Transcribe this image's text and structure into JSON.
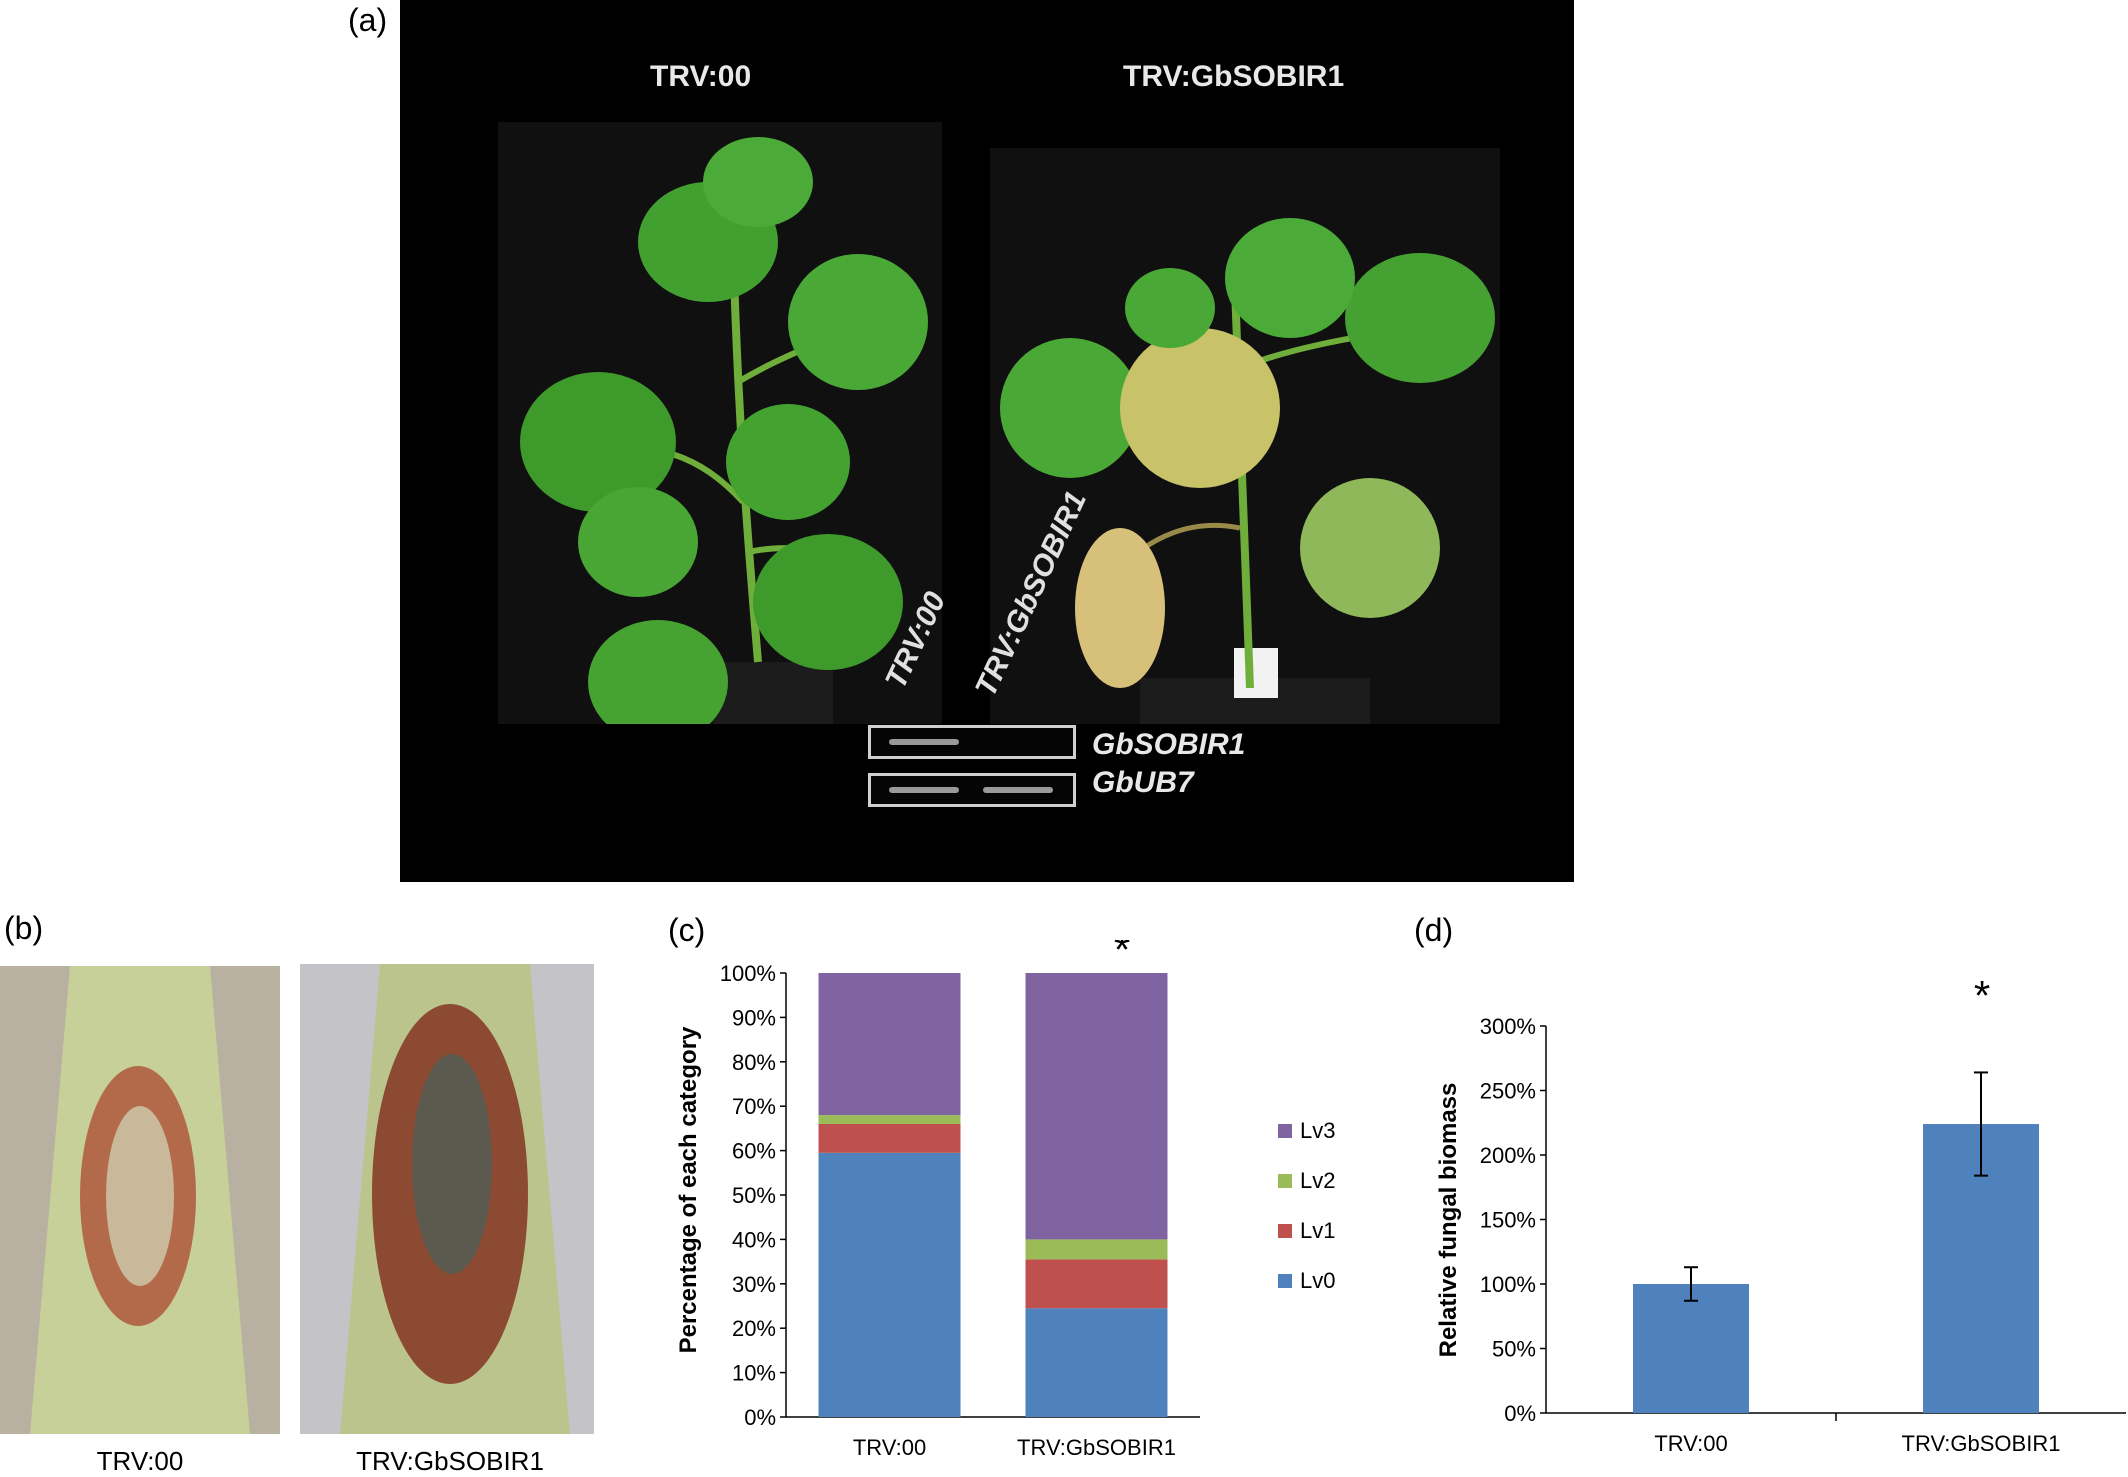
{
  "panel_a": {
    "letter": "(a)",
    "title_left": "TRV:00",
    "title_right": "TRV:GbSOBIR1",
    "lane_label_1": "TRV:00",
    "lane_label_2": "TRV:GbSOBIR1",
    "gel_label_1": "GbSOBIR1",
    "gel_label_2": "GbUB7"
  },
  "panel_b": {
    "letter": "(b)",
    "caption_left": "TRV:00",
    "caption_right": "TRV:GbSOBIR1"
  },
  "panel_c": {
    "letter": "(c)",
    "significance": "*"
  },
  "panel_d": {
    "letter": "(d)",
    "significance": "*"
  },
  "chart_data": [
    {
      "type": "bar",
      "stacked": true,
      "categories": [
        "TRV:00",
        "TRV:GbSOBIR1"
      ],
      "series": [
        {
          "name": "Lv0",
          "values": [
            59.5,
            24.5
          ],
          "color": "#4f81bd"
        },
        {
          "name": "Lv1",
          "values": [
            6.5,
            11
          ],
          "color": "#c0504d"
        },
        {
          "name": "Lv2",
          "values": [
            2,
            4.5
          ],
          "color": "#9bbb59"
        },
        {
          "name": "Lv3",
          "values": [
            32,
            60
          ],
          "color": "#8064a2"
        }
      ],
      "ylabel": "Percentage of each category",
      "ylim": [
        0,
        100
      ],
      "yticks": [
        "0%",
        "10%",
        "20%",
        "30%",
        "40%",
        "50%",
        "60%",
        "70%",
        "80%",
        "90%",
        "100%"
      ],
      "legend": [
        "Lv3",
        "Lv2",
        "Lv1",
        "Lv0"
      ],
      "legend_position": "right"
    },
    {
      "type": "bar",
      "categories": [
        "TRV:00",
        "TRV:GbSOBIR1"
      ],
      "values": [
        100,
        224
      ],
      "errors": [
        13,
        40
      ],
      "color": "#4f81bd",
      "ylabel": "Relative fungal biomass",
      "ylim": [
        0,
        300
      ],
      "yticks": [
        "0%",
        "50%",
        "100%",
        "150%",
        "200%",
        "250%",
        "300%"
      ]
    }
  ]
}
